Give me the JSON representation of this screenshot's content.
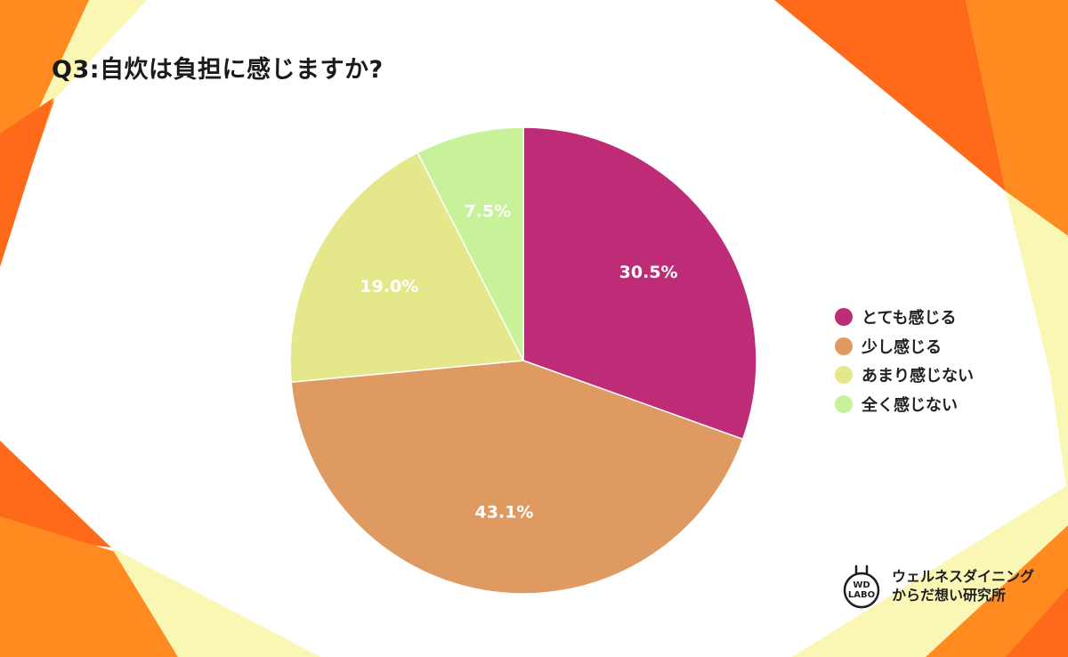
{
  "title": "Q3:自炊は負担に感じますか?",
  "chart_data": {
    "type": "pie",
    "title": "Q3:自炊は負担に感じますか?",
    "categories": [
      "とても感じる",
      "少し感じる",
      "あまり感じない",
      "全く感じない"
    ],
    "values": [
      30.5,
      43.1,
      19.0,
      7.5
    ],
    "value_labels": [
      "30.5%",
      "43.1%",
      "19.0%",
      "7.5%"
    ],
    "colors": [
      "#BE2B76",
      "#DF9A62",
      "#E4E88A",
      "#C8F29A"
    ],
    "start_angle": "12 o'clock",
    "direction": "clockwise",
    "legend_position": "right"
  },
  "legend": [
    {
      "label": "とても感じる",
      "color": "#BE2B76"
    },
    {
      "label": "少し感じる",
      "color": "#DF9A62"
    },
    {
      "label": "あまり感じない",
      "color": "#E4E88A"
    },
    {
      "label": "全く感じない",
      "color": "#C8F29A"
    }
  ],
  "logo": {
    "mark_line1": "WD",
    "mark_line2": "LABO",
    "line1": "ウェルネスダイニング",
    "line2": "からだ想い研究所"
  },
  "background_colors": {
    "orange": "#FF8A1F",
    "deep_orange": "#FF6A1A",
    "pale_yellow": "#FAF6B4"
  }
}
